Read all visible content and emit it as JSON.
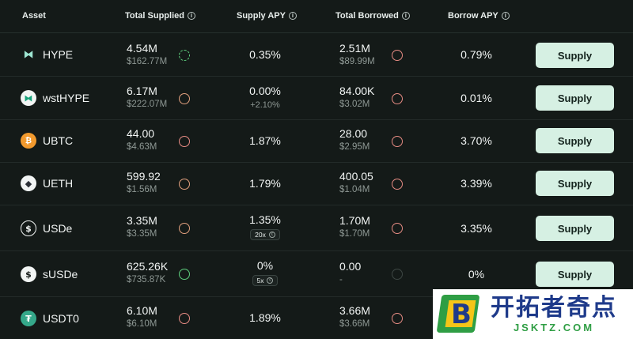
{
  "headers": {
    "asset": "Asset",
    "total_supplied": "Total Supplied",
    "supply_apy": "Supply APY",
    "total_borrowed": "Total Borrowed",
    "borrow_apy": "Borrow APY",
    "info_glyph": "i"
  },
  "rows": [
    {
      "asset": "HYPE",
      "icon": "hype-icon",
      "supplied": "4.54M",
      "supplied_usd": "$162.77M",
      "supply_ring": "green",
      "supply_apy": "0.35%",
      "supply_apy_sub": "",
      "chip": "",
      "borrowed": "2.51M",
      "borrowed_usd": "$89.99M",
      "borrow_ring": "salmon",
      "borrow_apy": "0.79%",
      "button": "Supply"
    },
    {
      "asset": "wstHYPE",
      "icon": "wsthype-icon",
      "supplied": "6.17M",
      "supplied_usd": "$222.07M",
      "supply_ring": "peach",
      "supply_apy": "0.00%",
      "supply_apy_sub": "+2.10%",
      "chip": "",
      "borrowed": "84.00K",
      "borrowed_usd": "$3.02M",
      "borrow_ring": "salmon",
      "borrow_apy": "0.01%",
      "button": "Supply"
    },
    {
      "asset": "UBTC",
      "icon": "bitcoin-icon",
      "supplied": "44.00",
      "supplied_usd": "$4.63M",
      "supply_ring": "salmon",
      "supply_apy": "1.87%",
      "supply_apy_sub": "",
      "chip": "",
      "borrowed": "28.00",
      "borrowed_usd": "$2.95M",
      "borrow_ring": "salmon",
      "borrow_apy": "3.70%",
      "button": "Supply"
    },
    {
      "asset": "UETH",
      "icon": "ethereum-icon",
      "supplied": "599.92",
      "supplied_usd": "$1.56M",
      "supply_ring": "peach",
      "supply_apy": "1.79%",
      "supply_apy_sub": "",
      "chip": "",
      "borrowed": "400.05",
      "borrowed_usd": "$1.04M",
      "borrow_ring": "salmon",
      "borrow_apy": "3.39%",
      "button": "Supply"
    },
    {
      "asset": "USDe",
      "icon": "usde-icon",
      "supplied": "3.35M",
      "supplied_usd": "$3.35M",
      "supply_ring": "peach",
      "supply_apy": "1.35%",
      "supply_apy_sub": "",
      "chip": "20x",
      "borrowed": "1.70M",
      "borrowed_usd": "$1.70M",
      "borrow_ring": "salmon",
      "borrow_apy": "3.35%",
      "button": "Supply"
    },
    {
      "asset": "sUSDe",
      "icon": "susde-icon",
      "supplied": "625.26K",
      "supplied_usd": "$735.87K",
      "supply_ring": "green",
      "supply_apy": "0%",
      "supply_apy_sub": "",
      "chip": "5x",
      "borrowed": "0.00",
      "borrowed_usd": "-",
      "borrow_ring": "dark",
      "borrow_apy": "0%",
      "button": "Supply"
    },
    {
      "asset": "USDT0",
      "icon": "tether-icon",
      "supplied": "6.10M",
      "supplied_usd": "$6.10M",
      "supply_ring": "salmon",
      "supply_apy": "1.89%",
      "supply_apy_sub": "",
      "chip": "",
      "borrowed": "3.66M",
      "borrowed_usd": "$3.66M",
      "borrow_ring": "salmon",
      "borrow_apy": "",
      "button": ""
    }
  ],
  "icon_glyphs": {
    "hype": "⧓",
    "wsthype": "⧓",
    "bitcoin": "₿",
    "ethereum": "◆",
    "usde": "$",
    "susde": "$",
    "tether": "₮",
    "chip": "€"
  },
  "watermark": {
    "logo_letter": "B",
    "cn": "开拓者奇点",
    "en": "JSKTZ.COM"
  },
  "colors": {
    "background": "#141a18",
    "button_bg": "#d6f0e3",
    "ring_salmon": "#e88c84",
    "ring_peach": "#e2a07e",
    "ring_green": "#5fcf7e",
    "watermark_blue": "#1e3a8a",
    "watermark_green": "#2f9e44"
  }
}
